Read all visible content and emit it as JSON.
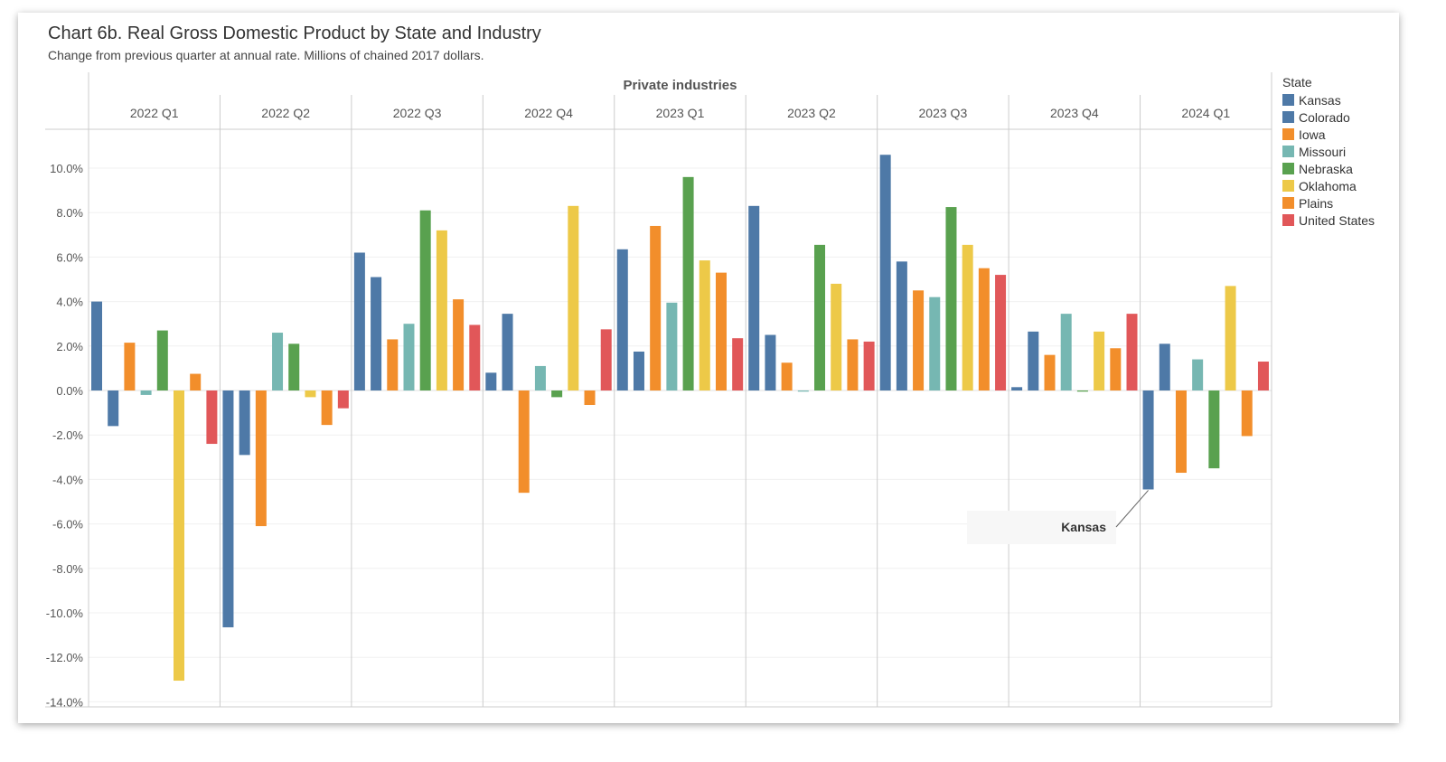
{
  "title": "Chart 6b. Real Gross Domestic Product by State and Industry",
  "subtitle": "Change from previous quarter at annual rate. Millions of chained 2017 dollars.",
  "chart_data": {
    "type": "bar",
    "panel_header": "Private industries",
    "categories": [
      "2022 Q1",
      "2022 Q2",
      "2022 Q3",
      "2022 Q4",
      "2023 Q1",
      "2023 Q2",
      "2023 Q3",
      "2023 Q4",
      "2024 Q1"
    ],
    "ylim": [
      -14,
      11
    ],
    "yticks": [
      10,
      8,
      6,
      4,
      2,
      0,
      -2,
      -4,
      -6,
      -8,
      -10,
      -12,
      -14
    ],
    "ytick_format": "%",
    "legend_title": "State",
    "legend_position": "right",
    "series": [
      {
        "name": "Kansas",
        "color": "#4e79a7",
        "values": [
          4.0,
          -10.65,
          6.2,
          0.8,
          6.35,
          8.3,
          10.6,
          0.15,
          -4.45
        ]
      },
      {
        "name": "Colorado",
        "color": "#4e79a7",
        "values": [
          -1.6,
          -2.9,
          5.1,
          3.45,
          1.75,
          2.5,
          5.8,
          2.65,
          2.1
        ]
      },
      {
        "name": "Iowa",
        "color": "#f28e2b",
        "values": [
          2.15,
          -6.1,
          2.3,
          -4.6,
          7.4,
          1.25,
          4.5,
          1.6,
          -3.7
        ]
      },
      {
        "name": "Missouri",
        "color": "#76b7b2",
        "values": [
          -0.2,
          2.6,
          3.0,
          1.1,
          3.95,
          -0.05,
          4.2,
          3.45,
          1.4
        ]
      },
      {
        "name": "Nebraska",
        "color": "#59a14f",
        "values": [
          2.7,
          2.1,
          8.1,
          -0.3,
          9.6,
          6.55,
          8.25,
          -0.05,
          -3.5
        ]
      },
      {
        "name": "Oklahoma",
        "color": "#edc948",
        "values": [
          -13.05,
          -0.3,
          7.2,
          8.3,
          5.85,
          4.8,
          6.55,
          2.65,
          4.7
        ]
      },
      {
        "name": "Plains",
        "color": "#f28e2b",
        "values": [
          0.75,
          -1.55,
          4.1,
          -0.65,
          5.3,
          2.3,
          5.5,
          1.9,
          -2.05
        ]
      },
      {
        "name": "United States",
        "color": "#e15759",
        "values": [
          -2.4,
          -0.8,
          2.95,
          2.75,
          2.35,
          2.2,
          5.2,
          3.45,
          1.3
        ]
      }
    ],
    "annotation": {
      "label": "Kansas",
      "category": "2024 Q1",
      "series": "Kansas"
    }
  }
}
